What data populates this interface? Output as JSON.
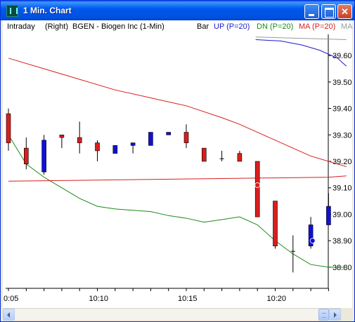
{
  "window": {
    "title": "1 Min. Chart"
  },
  "header": {
    "mode": "Intraday",
    "axis_side": "(Right)",
    "symbol": "BGEN - Biogen Inc  (1-Min)",
    "style": "Bar",
    "indicators": [
      {
        "label": "UP (P=20)",
        "color": "#1a1acc"
      },
      {
        "label": "DN (P=20)",
        "color": "#1a8a1a"
      },
      {
        "label": "MA (P=20)",
        "color": "#d81e1e"
      },
      {
        "label": "MA",
        "color": "#9a9a9a"
      }
    ]
  },
  "chart_data": {
    "type": "candlestick",
    "x_tick_labels": [
      "0:05",
      "10:10",
      "10:15",
      "10:20"
    ],
    "x_tick_index": [
      0,
      5,
      10,
      15
    ],
    "y_tick_labels": [
      "39.60",
      "39.50",
      "39.40",
      "39.30",
      "39.20",
      "39.10",
      "39.00",
      "38.90",
      "38.80"
    ],
    "ylim": [
      38.72,
      39.68
    ],
    "up_color": "#1010d8",
    "down_color": "#d81e1e",
    "candles": [
      {
        "o": 39.38,
        "h": 39.4,
        "l": 39.24,
        "c": 39.27
      },
      {
        "o": 39.25,
        "h": 39.29,
        "l": 39.17,
        "c": 39.19
      },
      {
        "o": 39.16,
        "h": 39.3,
        "l": 39.15,
        "c": 39.28
      },
      {
        "o": 39.3,
        "h": 39.3,
        "l": 39.25,
        "c": 39.29
      },
      {
        "o": 39.29,
        "h": 39.35,
        "l": 39.23,
        "c": 39.27
      },
      {
        "o": 39.27,
        "h": 39.28,
        "l": 39.2,
        "c": 39.24
      },
      {
        "o": 39.23,
        "h": 39.26,
        "l": 39.23,
        "c": 39.26
      },
      {
        "o": 39.26,
        "h": 39.27,
        "l": 39.23,
        "c": 39.27
      },
      {
        "o": 39.26,
        "h": 39.31,
        "l": 39.26,
        "c": 39.31
      },
      {
        "o": 39.3,
        "h": 39.31,
        "l": 39.3,
        "c": 39.31
      },
      {
        "o": 39.31,
        "h": 39.34,
        "l": 39.25,
        "c": 39.27
      },
      {
        "o": 39.25,
        "h": 39.25,
        "l": 39.2,
        "c": 39.2
      },
      {
        "o": 39.21,
        "h": 39.24,
        "l": 39.2,
        "c": 39.21
      },
      {
        "o": 39.23,
        "h": 39.24,
        "l": 39.2,
        "c": 39.2
      },
      {
        "o": 39.2,
        "h": 39.2,
        "l": 38.99,
        "c": 38.99
      },
      {
        "o": 39.05,
        "h": 39.05,
        "l": 38.87,
        "c": 38.88
      },
      {
        "o": 38.86,
        "h": 38.92,
        "l": 38.78,
        "c": 38.86
      },
      {
        "o": 38.88,
        "h": 38.99,
        "l": 38.87,
        "c": 38.96
      },
      {
        "o": 38.96,
        "h": 39.08,
        "l": 38.96,
        "c": 39.03
      }
    ],
    "series": [
      {
        "name": "UP (P=20)",
        "color": "#1a1acc",
        "x": [
          13.9,
          15.3,
          16.5,
          17.5,
          18.5,
          19.0
        ],
        "y": [
          39.66,
          39.655,
          39.64,
          39.62,
          39.59,
          39.56
        ]
      },
      {
        "name": "DN (P=20)",
        "color": "#1a8a1a",
        "x": [
          0,
          1,
          2,
          3,
          4,
          5,
          6,
          7,
          8,
          9,
          10,
          11,
          12,
          13,
          14,
          15,
          16,
          17,
          18,
          19
        ],
        "y": [
          39.3,
          39.19,
          39.14,
          39.1,
          39.06,
          39.03,
          39.02,
          39.015,
          39.01,
          38.995,
          38.985,
          38.97,
          38.98,
          38.99,
          38.96,
          38.9,
          38.85,
          38.81,
          38.8,
          38.8
        ]
      },
      {
        "name": "MA (P=20)",
        "color": "#d81e1e",
        "x": [
          0,
          2,
          4,
          6,
          8,
          10,
          12,
          13,
          14,
          15,
          16,
          17,
          18,
          19
        ],
        "y": [
          39.59,
          39.55,
          39.51,
          39.47,
          39.44,
          39.41,
          39.365,
          39.34,
          39.31,
          39.28,
          39.25,
          39.22,
          39.2,
          39.18
        ]
      },
      {
        "name": "MA",
        "color": "#d81e1e",
        "x": [
          0,
          6,
          12,
          18,
          19
        ],
        "y": [
          39.125,
          39.13,
          39.135,
          39.14,
          39.145
        ]
      },
      {
        "name": "MA",
        "color": "#9a9a9a",
        "x": [
          13.9,
          19.0
        ],
        "y": [
          39.67,
          39.66
        ]
      }
    ],
    "markers": [
      {
        "i": 14,
        "y": 39.11,
        "color": "#d81e1e"
      },
      {
        "i": 17.1,
        "y": 38.9,
        "color": "#1010d8"
      }
    ]
  }
}
